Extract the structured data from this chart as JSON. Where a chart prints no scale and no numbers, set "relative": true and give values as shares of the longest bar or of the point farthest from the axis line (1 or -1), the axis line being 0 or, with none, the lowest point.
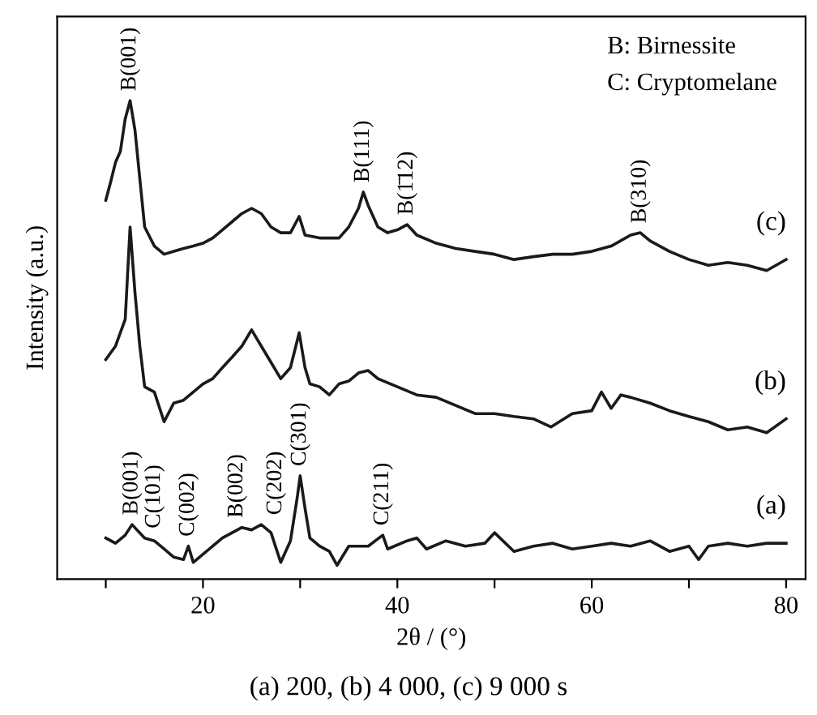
{
  "chart_data": {
    "type": "line",
    "relative": true,
    "xlabel": "2θ / (°)",
    "ylabel": "Intensity (a.u.)",
    "xlim": [
      5,
      82
    ],
    "xticks": [
      {
        "value": 10,
        "label": null
      },
      20,
      {
        "value": 30,
        "label": null
      },
      40,
      {
        "value": 50,
        "label": null
      },
      60,
      {
        "value": 70,
        "label": null
      },
      80
    ],
    "grid": false,
    "legend": false,
    "marker": "none",
    "line_style": "solid",
    "series": [
      {
        "name": "(a)",
        "color": "#1a1a1a",
        "x": [
          10,
          11,
          12,
          12.7,
          14,
          15,
          16,
          17,
          18,
          18.5,
          19,
          20,
          21,
          22,
          23,
          24,
          25,
          26,
          27,
          28,
          29,
          29.7,
          30,
          30.5,
          31,
          32,
          33,
          33.8,
          35,
          37,
          38.5,
          39,
          41,
          42,
          43,
          45,
          47,
          49,
          50,
          52,
          54,
          56,
          58,
          60,
          62,
          64,
          66,
          68,
          70,
          71,
          72,
          74,
          76,
          78,
          80
        ],
        "values": [
          0.086,
          0.075,
          0.092,
          0.114,
          0.086,
          0.08,
          0.063,
          0.046,
          0.041,
          0.069,
          0.035,
          0.052,
          0.069,
          0.086,
          0.097,
          0.108,
          0.103,
          0.114,
          0.097,
          0.035,
          0.08,
          0.171,
          0.216,
          0.148,
          0.086,
          0.069,
          0.058,
          0.029,
          0.069,
          0.069,
          0.092,
          0.063,
          0.08,
          0.086,
          0.063,
          0.08,
          0.069,
          0.075,
          0.097,
          0.058,
          0.069,
          0.075,
          0.063,
          0.069,
          0.075,
          0.069,
          0.08,
          0.058,
          0.069,
          0.041,
          0.069,
          0.075,
          0.069,
          0.075,
          0.075
        ]
      },
      {
        "name": "(b)",
        "color": "#1a1a1a",
        "x": [
          10,
          11,
          12,
          12.5,
          13,
          13.5,
          14,
          15,
          16,
          17,
          18,
          19,
          20,
          21,
          22,
          23,
          24,
          25,
          26,
          27,
          28,
          29,
          29.9,
          30.5,
          31,
          32,
          33,
          34,
          35,
          36,
          37,
          38,
          40,
          42,
          44,
          46,
          48,
          50,
          52,
          54,
          55.8,
          58,
          60,
          61,
          62,
          63,
          64,
          66,
          68,
          70,
          72,
          74,
          76,
          78,
          80
        ],
        "values": [
          0.459,
          0.487,
          0.543,
          0.736,
          0.6,
          0.487,
          0.402,
          0.391,
          0.329,
          0.368,
          0.374,
          0.391,
          0.408,
          0.419,
          0.442,
          0.464,
          0.487,
          0.521,
          0.487,
          0.453,
          0.419,
          0.442,
          0.515,
          0.442,
          0.408,
          0.402,
          0.385,
          0.408,
          0.414,
          0.431,
          0.436,
          0.419,
          0.402,
          0.385,
          0.38,
          0.363,
          0.346,
          0.346,
          0.34,
          0.335,
          0.318,
          0.346,
          0.352,
          0.391,
          0.357,
          0.385,
          0.38,
          0.368,
          0.352,
          0.34,
          0.329,
          0.312,
          0.318,
          0.306,
          0.335
        ]
      },
      {
        "name": "(c)",
        "color": "#1a1a1a",
        "x": [
          10,
          10.5,
          11,
          11.5,
          12,
          12.5,
          13,
          13.5,
          14,
          15,
          16,
          17,
          18,
          19,
          20,
          21,
          22,
          23,
          24,
          25,
          26,
          27,
          28,
          29,
          29.9,
          30.5,
          32,
          34,
          35,
          36,
          36.5,
          37,
          38,
          39,
          40,
          41,
          42,
          44,
          46,
          48,
          50,
          52,
          54,
          56,
          58,
          60,
          62,
          64,
          65,
          66,
          68,
          70,
          72,
          74,
          76,
          78,
          80
        ],
        "values": [
          0.792,
          0.83,
          0.871,
          0.894,
          0.962,
          1,
          0.939,
          0.837,
          0.736,
          0.696,
          0.679,
          0.685,
          0.691,
          0.696,
          0.702,
          0.713,
          0.73,
          0.747,
          0.764,
          0.775,
          0.764,
          0.736,
          0.724,
          0.724,
          0.758,
          0.719,
          0.713,
          0.713,
          0.736,
          0.775,
          0.809,
          0.781,
          0.736,
          0.724,
          0.73,
          0.741,
          0.719,
          0.702,
          0.691,
          0.685,
          0.679,
          0.668,
          0.674,
          0.679,
          0.679,
          0.685,
          0.696,
          0.719,
          0.724,
          0.707,
          0.685,
          0.668,
          0.656,
          0.662,
          0.656,
          0.645,
          0.668
        ]
      }
    ],
    "annotations": [
      {
        "text": "B(001)",
        "x": 12.5,
        "y": 1
      },
      {
        "text": "B(111)",
        "x": 36.5,
        "y": 0.809
      },
      {
        "text": "B(1̄12)",
        "x": 41,
        "y": 0.741
      },
      {
        "text": "B(310)",
        "x": 65,
        "y": 0.724
      },
      {
        "text": "B(001)",
        "x": 12.7,
        "y": 0.114
      },
      {
        "text": "C(101)",
        "x": 15,
        "y": 0.086
      },
      {
        "text": "C(002)",
        "x": 18.5,
        "y": 0.069
      },
      {
        "text": "B(002)",
        "x": 23.5,
        "y": 0.108
      },
      {
        "text": "C(202)",
        "x": 27.5,
        "y": 0.114
      },
      {
        "text": "C(301)",
        "x": 30,
        "y": 0.216
      },
      {
        "text": "C(211)",
        "x": 38.5,
        "y": 0.092
      },
      "B: Birnessite",
      "C: Cryptomelane",
      "(a) 200, (b) 4 000, (c) 9 000 s"
    ]
  }
}
